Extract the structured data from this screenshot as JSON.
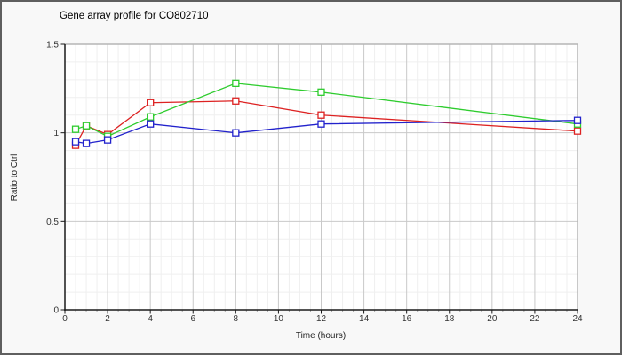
{
  "chart_data": {
    "type": "line",
    "title": "Gene array profile for CO802710",
    "xlabel": "Time (hours)",
    "ylabel": "Ratio to Ctrl",
    "x": [
      0.5,
      1,
      2,
      4,
      8,
      12,
      24
    ],
    "series": [
      {
        "name": "red",
        "color": "#dd2222",
        "values": [
          0.93,
          1.04,
          0.99,
          1.17,
          1.18,
          1.1,
          1.01
        ]
      },
      {
        "name": "green",
        "color": "#2ecc2e",
        "values": [
          1.02,
          1.04,
          0.98,
          1.09,
          1.28,
          1.23,
          1.05
        ]
      },
      {
        "name": "blue",
        "color": "#2222cc",
        "values": [
          0.95,
          0.94,
          0.96,
          1.05,
          1.0,
          1.05,
          1.07
        ]
      }
    ],
    "xlim": [
      0,
      24
    ],
    "ylim": [
      0,
      1.5
    ],
    "x_ticks": [
      0,
      2,
      4,
      6,
      8,
      10,
      12,
      14,
      16,
      18,
      20,
      22,
      24
    ],
    "x_tick_labels": [
      "0",
      "2",
      "4",
      "6",
      "8",
      "10",
      "12",
      "14",
      "16",
      "18",
      "20",
      "22",
      "24"
    ],
    "y_ticks": [
      0,
      0.5,
      1,
      1.5
    ],
    "y_tick_labels": [
      "0",
      "0.5",
      "1",
      "1.5"
    ],
    "x_minor_step": 0.5,
    "y_minor_step": 0.1,
    "grid": true,
    "legend": "none",
    "marker": "open-square",
    "colors": {
      "plot_background": "#ffffff",
      "page_background": "#f8f8f8",
      "minor_grid": "#efefef",
      "major_grid": "#c9c9c9",
      "frame": "#b5b5b5",
      "axis": "#1a1a1a"
    }
  }
}
